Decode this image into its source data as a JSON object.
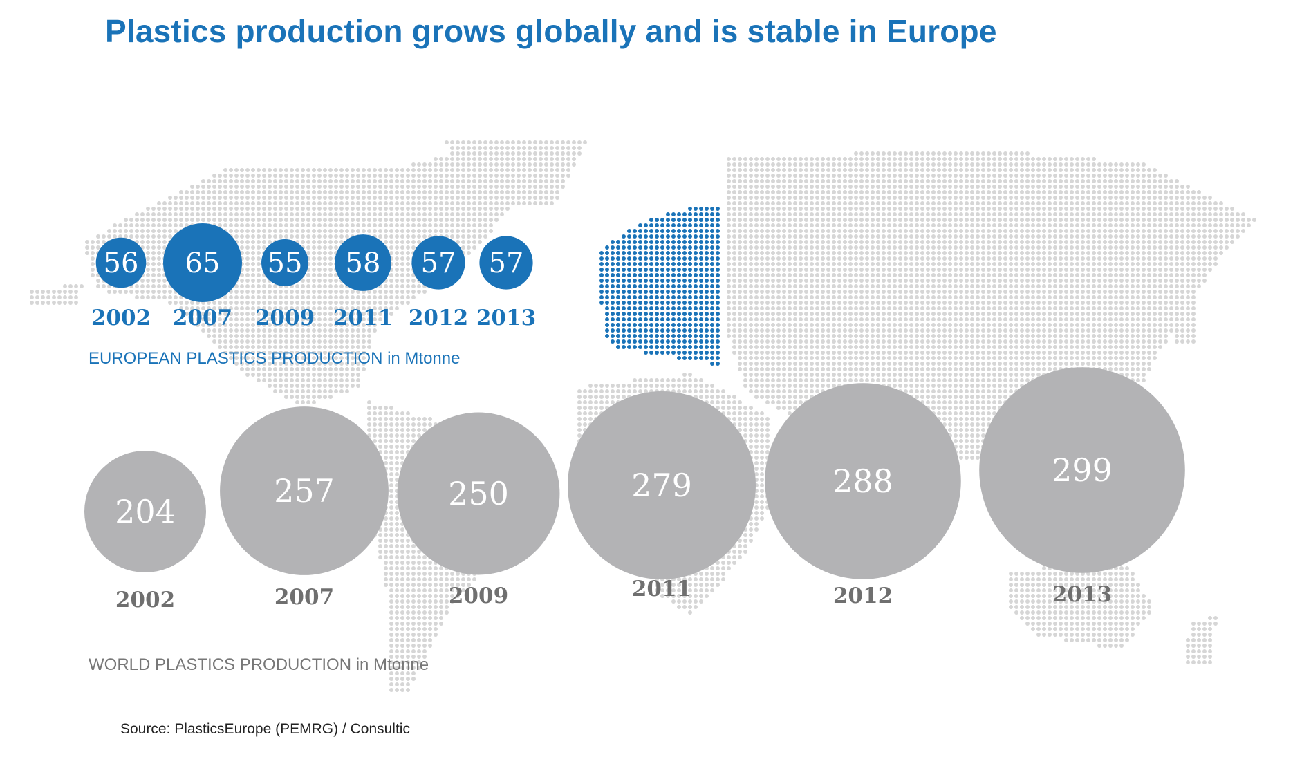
{
  "title": "Plastics production grows globally and is stable in Europe",
  "source": "Source: PlasticsEurope (PEMRG) / Consultic",
  "colors": {
    "europe": "#1a73b8",
    "world": "#b3b3b5",
    "map_dots": "#d6d6d6",
    "title": "#1a73b8"
  },
  "chart_data": [
    {
      "type": "bubble",
      "label": "EUROPEAN PLASTICS PRODUCTION in Mtonne",
      "categories": [
        "2002",
        "2007",
        "2009",
        "2011",
        "2012",
        "2013"
      ],
      "values": [
        56,
        65,
        55,
        58,
        57,
        57
      ]
    },
    {
      "type": "bubble",
      "label": "WORLD PLASTICS PRODUCTION in Mtonne",
      "categories": [
        "2002",
        "2007",
        "2009",
        "2011",
        "2012",
        "2013"
      ],
      "values": [
        204,
        257,
        250,
        279,
        288,
        299
      ]
    }
  ]
}
